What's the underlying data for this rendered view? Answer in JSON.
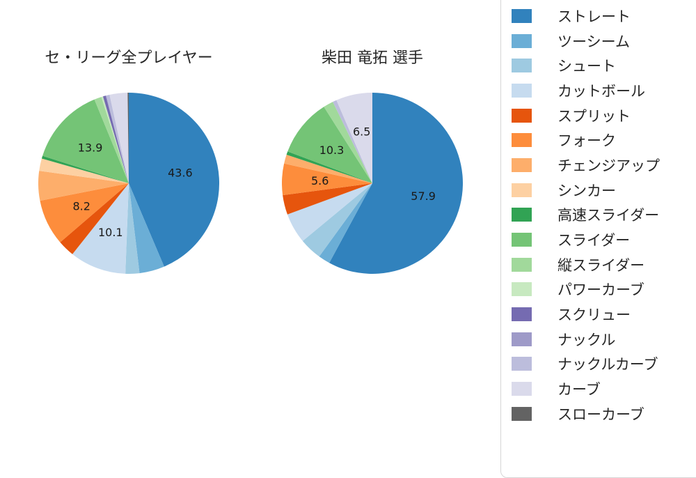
{
  "page": {
    "background_color": "#ffffff"
  },
  "chart_data": [
    {
      "type": "pie",
      "title": "セ・リーグ全プレイヤー",
      "categories": [
        "ストレート",
        "ツーシーム",
        "シュート",
        "カットボール",
        "スプリット",
        "フォーク",
        "チェンジアップ",
        "シンカー",
        "高速スライダー",
        "スライダー",
        "縦スライダー",
        "パワーカーブ",
        "スクリュー",
        "ナックル",
        "ナックルカーブ",
        "カーブ",
        "スローカーブ"
      ],
      "values": [
        43.6,
        4.5,
        2.5,
        10.1,
        3.0,
        8.2,
        5.3,
        2.2,
        0.5,
        13.9,
        1.3,
        0.3,
        0.5,
        0.1,
        0.6,
        3.2,
        0.2
      ],
      "labeled_values": [
        43.6,
        10.1,
        8.2,
        13.9
      ],
      "colors": [
        "#3182bd",
        "#6baed6",
        "#9ecae1",
        "#c6dbef",
        "#e6550d",
        "#fd8d3c",
        "#fdae6b",
        "#fdd0a2",
        "#31a354",
        "#74c476",
        "#a1d99b",
        "#c7e9c0",
        "#756bb1",
        "#9e9ac8",
        "#bcbddc",
        "#dadaeb",
        "#636363"
      ],
      "start_angle": "top",
      "direction": "clockwise",
      "label_min_value": 5.6,
      "label_radius_ratio": 0.58
    },
    {
      "type": "pie",
      "title": "柴田 竜拓 選手",
      "categories": [
        "ストレート",
        "ツーシーム",
        "シュート",
        "カットボール",
        "スプリット",
        "フォーク",
        "チェンジアップ",
        "シンカー",
        "高速スライダー",
        "スライダー",
        "縦スライダー",
        "パワーカーブ",
        "スクリュー",
        "ナックル",
        "ナックルカーブ",
        "カーブ",
        "スローカーブ"
      ],
      "values": [
        57.9,
        2.1,
        4.0,
        5.4,
        3.5,
        5.6,
        1.6,
        0.0,
        0.6,
        10.3,
        1.8,
        0.0,
        0.0,
        0.0,
        0.7,
        6.5,
        0.0
      ],
      "labeled_values": [
        57.9,
        5.6,
        10.3,
        6.5
      ],
      "colors": [
        "#3182bd",
        "#6baed6",
        "#9ecae1",
        "#c6dbef",
        "#e6550d",
        "#fd8d3c",
        "#fdae6b",
        "#fdd0a2",
        "#31a354",
        "#74c476",
        "#a1d99b",
        "#c7e9c0",
        "#756bb1",
        "#9e9ac8",
        "#bcbddc",
        "#dadaeb",
        "#636363"
      ],
      "start_angle": "top",
      "direction": "clockwise",
      "label_min_value": 5.6,
      "label_radius_ratio": 0.58
    }
  ],
  "legend": {
    "position": "right",
    "border_color": "#d6d6d6",
    "items": [
      {
        "label": "ストレート",
        "color": "#3182bd"
      },
      {
        "label": "ツーシーム",
        "color": "#6baed6"
      },
      {
        "label": "シュート",
        "color": "#9ecae1"
      },
      {
        "label": "カットボール",
        "color": "#c6dbef"
      },
      {
        "label": "スプリット",
        "color": "#e6550d"
      },
      {
        "label": "フォーク",
        "color": "#fd8d3c"
      },
      {
        "label": "チェンジアップ",
        "color": "#fdae6b"
      },
      {
        "label": "シンカー",
        "color": "#fdd0a2"
      },
      {
        "label": "高速スライダー",
        "color": "#31a354"
      },
      {
        "label": "スライダー",
        "color": "#74c476"
      },
      {
        "label": "縦スライダー",
        "color": "#a1d99b"
      },
      {
        "label": "パワーカーブ",
        "color": "#c7e9c0"
      },
      {
        "label": "スクリュー",
        "color": "#756bb1"
      },
      {
        "label": "ナックル",
        "color": "#9e9ac8"
      },
      {
        "label": "ナックルカーブ",
        "color": "#bcbddc"
      },
      {
        "label": "カーブ",
        "color": "#dadaeb"
      },
      {
        "label": "スローカーブ",
        "color": "#636363"
      }
    ]
  }
}
